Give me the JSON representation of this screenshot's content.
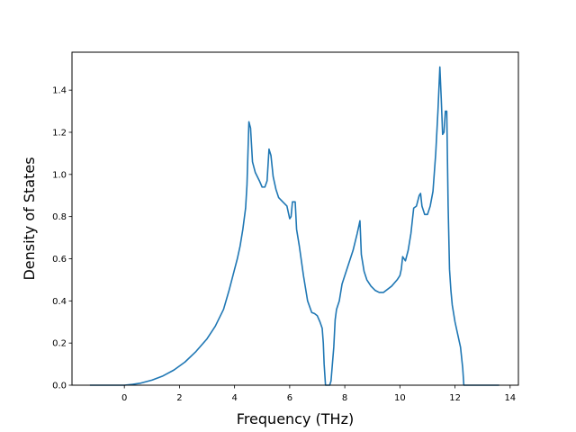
{
  "chart_data": {
    "type": "line",
    "title": "",
    "xlabel": "Frequency (THz)",
    "ylabel": "Density of States",
    "xlim": [
      -1.9,
      14.3
    ],
    "ylim": [
      0.0,
      1.58
    ],
    "xticks": [
      0,
      2,
      4,
      6,
      8,
      10,
      12,
      14
    ],
    "yticks": [
      0.0,
      0.2,
      0.4,
      0.6,
      0.8,
      1.0,
      1.2,
      1.4
    ],
    "grid": false,
    "legend": "none",
    "colors": {
      "line": "#1f77b4"
    },
    "series": [
      {
        "x": [
          -1.25,
          -0.8,
          -0.3,
          0.0,
          0.3,
          0.6,
          1.0,
          1.4,
          1.8,
          2.2,
          2.6,
          3.0,
          3.3,
          3.6,
          3.8,
          4.0,
          4.1,
          4.2,
          4.3,
          4.4,
          4.45,
          4.52,
          4.58,
          4.65,
          4.75,
          4.9,
          5.0,
          5.1,
          5.18,
          5.25,
          5.32,
          5.4,
          5.5,
          5.6,
          5.75,
          5.9,
          6.0,
          6.05,
          6.1,
          6.15,
          6.2,
          6.25,
          6.35,
          6.5,
          6.65,
          6.8,
          6.9,
          7.0,
          7.1,
          7.18,
          7.22,
          7.25,
          7.3,
          7.4,
          7.45,
          7.5,
          7.6,
          7.65,
          7.7,
          7.8,
          7.9,
          8.1,
          8.3,
          8.45,
          8.5,
          8.55,
          8.6,
          8.7,
          8.8,
          8.95,
          9.1,
          9.25,
          9.4,
          9.7,
          9.9,
          10.0,
          10.05,
          10.1,
          10.2,
          10.3,
          10.4,
          10.5,
          10.6,
          10.7,
          10.75,
          10.8,
          10.9,
          11.0,
          11.1,
          11.2,
          11.3,
          11.38,
          11.45,
          11.5,
          11.55,
          11.6,
          11.65,
          11.7,
          11.75,
          11.8,
          11.85,
          11.9,
          12.0,
          12.1,
          12.2,
          12.28,
          12.32,
          12.4,
          12.6,
          13.0,
          13.6
        ],
        "y": [
          0.0,
          0.0,
          0.0,
          0.0,
          0.004,
          0.01,
          0.024,
          0.044,
          0.072,
          0.11,
          0.16,
          0.22,
          0.28,
          0.36,
          0.45,
          0.55,
          0.6,
          0.66,
          0.74,
          0.84,
          0.95,
          1.25,
          1.22,
          1.06,
          1.01,
          0.97,
          0.94,
          0.94,
          0.97,
          1.12,
          1.09,
          0.99,
          0.93,
          0.89,
          0.87,
          0.85,
          0.79,
          0.8,
          0.87,
          0.87,
          0.87,
          0.74,
          0.66,
          0.52,
          0.4,
          0.345,
          0.34,
          0.33,
          0.3,
          0.27,
          0.2,
          0.1,
          0.0,
          0.0,
          0.0,
          0.02,
          0.18,
          0.31,
          0.36,
          0.4,
          0.48,
          0.56,
          0.64,
          0.72,
          0.75,
          0.78,
          0.62,
          0.54,
          0.5,
          0.47,
          0.45,
          0.44,
          0.44,
          0.47,
          0.5,
          0.52,
          0.55,
          0.61,
          0.59,
          0.64,
          0.72,
          0.84,
          0.85,
          0.9,
          0.91,
          0.85,
          0.81,
          0.81,
          0.85,
          0.92,
          1.1,
          1.3,
          1.51,
          1.36,
          1.19,
          1.2,
          1.3,
          1.3,
          0.85,
          0.55,
          0.45,
          0.38,
          0.3,
          0.24,
          0.18,
          0.08,
          0.0,
          0.0,
          0.0,
          0.0,
          0.0
        ]
      }
    ]
  }
}
